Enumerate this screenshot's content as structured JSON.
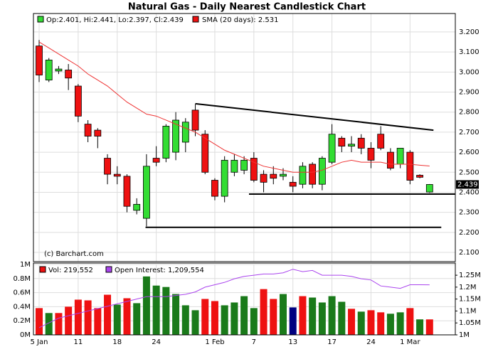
{
  "chart_data": [
    {
      "type": "candlestick",
      "title": "Natural Gas - Daily Nearest Candlestick Chart",
      "legend": [
        "Op:2.401, Hi:2.441, Lo:2.397, Cl:2.439",
        "SMA (20 days): 2.531"
      ],
      "credit": "(c) Barchart.com",
      "up_color": "#33dd33",
      "down_color": "#ee1111",
      "sma_color": "#ee3333",
      "open": [
        3.13,
        2.96,
        3.005,
        3.01,
        2.93,
        2.74,
        2.71,
        2.57,
        2.49,
        2.48,
        2.31,
        2.27,
        2.57,
        2.57,
        2.6,
        2.65,
        2.81,
        2.69,
        2.46,
        2.38,
        2.5,
        2.51,
        2.57,
        2.49,
        2.49,
        2.48,
        2.45,
        2.44,
        2.54,
        2.44,
        2.55,
        2.67,
        2.63,
        2.67,
        2.62,
        2.69,
        2.6,
        2.54,
        2.6,
        2.485,
        2.401
      ],
      "high": [
        3.16,
        3.07,
        3.03,
        3.04,
        2.94,
        2.76,
        2.72,
        2.59,
        2.53,
        2.49,
        2.37,
        2.59,
        2.63,
        2.74,
        2.8,
        2.77,
        2.84,
        2.71,
        2.47,
        2.58,
        2.59,
        2.58,
        2.6,
        2.51,
        2.53,
        2.52,
        2.48,
        2.55,
        2.55,
        2.58,
        2.74,
        2.68,
        2.68,
        2.69,
        2.65,
        2.73,
        2.62,
        2.62,
        2.61,
        2.49,
        2.441
      ],
      "low": [
        2.95,
        2.95,
        2.99,
        2.91,
        2.75,
        2.65,
        2.62,
        2.44,
        2.44,
        2.3,
        2.29,
        2.23,
        2.53,
        2.55,
        2.56,
        2.6,
        2.68,
        2.49,
        2.36,
        2.35,
        2.48,
        2.49,
        2.45,
        2.4,
        2.44,
        2.46,
        2.4,
        2.42,
        2.42,
        2.41,
        2.54,
        2.6,
        2.6,
        2.59,
        2.52,
        2.61,
        2.51,
        2.52,
        2.44,
        2.47,
        2.397
      ],
      "close": [
        2.985,
        3.06,
        3.015,
        2.97,
        2.78,
        2.68,
        2.68,
        2.49,
        2.48,
        2.33,
        2.34,
        2.53,
        2.55,
        2.73,
        2.76,
        2.75,
        2.71,
        2.5,
        2.38,
        2.56,
        2.56,
        2.56,
        2.46,
        2.45,
        2.47,
        2.49,
        2.43,
        2.53,
        2.44,
        2.57,
        2.69,
        2.63,
        2.64,
        2.62,
        2.56,
        2.62,
        2.52,
        2.62,
        2.46,
        2.475,
        2.439
      ],
      "sma": [
        3.15,
        3.12,
        3.09,
        3.06,
        3.03,
        2.99,
        2.96,
        2.93,
        2.89,
        2.85,
        2.82,
        2.79,
        2.78,
        2.76,
        2.74,
        2.72,
        2.7,
        2.67,
        2.64,
        2.61,
        2.59,
        2.57,
        2.55,
        2.53,
        2.52,
        2.51,
        2.5,
        2.5,
        2.5,
        2.51,
        2.53,
        2.55,
        2.56,
        2.55,
        2.55,
        2.55,
        2.54,
        2.54,
        2.54,
        2.535,
        2.531
      ],
      "trendlines": [
        {
          "x": [
            16,
            40.4
          ],
          "values": [
            2.842,
            2.71
          ]
        },
        {
          "x": [
            21.5,
            42.6
          ],
          "values": [
            2.391,
            2.391
          ]
        },
        {
          "x": [
            10.9,
            41.2
          ],
          "values": [
            2.225,
            2.225
          ]
        }
      ],
      "ylim": [
        2.054,
        3.292
      ],
      "yticks": [
        {
          "value": 2.1,
          "label": "2.100"
        },
        {
          "value": 2.2,
          "label": "2.200"
        },
        {
          "value": 2.3,
          "label": "2.300"
        },
        {
          "value": 2.4,
          "label": "2.400"
        },
        {
          "value": 2.5,
          "label": "2.500"
        },
        {
          "value": 2.6,
          "label": "2.600"
        },
        {
          "value": 2.7,
          "label": "2.700"
        },
        {
          "value": 2.8,
          "label": "2.800"
        },
        {
          "value": 2.9,
          "label": "2.900"
        },
        {
          "value": 3.0,
          "label": "3.000"
        },
        {
          "value": 3.1,
          "label": "3.100"
        },
        {
          "value": 3.2,
          "label": "3.200"
        }
      ],
      "grid": true
    },
    {
      "type": "bar",
      "legend": [
        "Vol: 219,552",
        "Open Interest: 1,209,554"
      ],
      "categories": [
        "5 Jan",
        null,
        null,
        null,
        "11",
        null,
        null,
        null,
        "18",
        null,
        null,
        null,
        "24",
        null,
        null,
        null,
        null,
        null,
        "1 Feb",
        null,
        null,
        null,
        "7",
        null,
        null,
        null,
        "13",
        null,
        null,
        null,
        "17",
        null,
        null,
        null,
        "24",
        null,
        null,
        null,
        "1 Mar",
        null,
        null
      ],
      "series": [
        {
          "name": "Vol",
          "colors": [
            "#ee1111",
            "#1a7a1a",
            "#ee1111",
            "#ee1111",
            "#ee1111",
            "#ee1111",
            "#ee1111",
            "#ee1111",
            "#1a7a1a",
            "#ee1111",
            "#1a7a1a",
            "#1a7a1a",
            "#1a7a1a",
            "#1a7a1a",
            "#1a7a1a",
            "#1a7a1a",
            "#1a7a1a",
            "#ee1111",
            "#ee1111",
            "#1a7a1a",
            "#1a7a1a",
            "#1a7a1a",
            "#1a7a1a",
            "#ee1111",
            "#ee1111",
            "#1a7a1a",
            "#000080",
            "#ee1111",
            "#1a7a1a",
            "#1a7a1a",
            "#1a7a1a",
            "#1a7a1a",
            "#ee1111",
            "#1a7a1a",
            "#ee1111",
            "#ee1111",
            "#1a7a1a",
            "#1a7a1a",
            "#ee1111",
            "#1a7a1a",
            "#ee1111"
          ],
          "values": [
            380000,
            310000,
            310000,
            400000,
            500000,
            490000,
            380000,
            570000,
            430000,
            520000,
            450000,
            830000,
            700000,
            680000,
            580000,
            420000,
            350000,
            510000,
            480000,
            420000,
            460000,
            550000,
            380000,
            650000,
            510000,
            580000,
            390000,
            550000,
            530000,
            460000,
            550000,
            470000,
            370000,
            330000,
            350000,
            320000,
            300000,
            320000,
            380000,
            220000,
            219552
          ]
        },
        {
          "name": "Open Interest",
          "color": "#aa44ee",
          "axis": "y2",
          "values": [
            1030000,
            1050000,
            1070000,
            1080000,
            1090000,
            1100000,
            1110000,
            1120000,
            1130000,
            1140000,
            1150000,
            1160000,
            1160000,
            1160000,
            1165000,
            1170000,
            1180000,
            1200000,
            1210000,
            1220000,
            1235000,
            1245000,
            1250000,
            1255000,
            1255000,
            1260000,
            1275000,
            1265000,
            1270000,
            1250000,
            1250000,
            1250000,
            1245000,
            1235000,
            1230000,
            1205000,
            1200000,
            1195000,
            1210000,
            1210000,
            1209554
          ]
        }
      ],
      "ylim": [
        0,
        1000000
      ],
      "yticks": [
        {
          "value": 0,
          "label": "0M"
        },
        {
          "value": 200000,
          "label": "0.2M"
        },
        {
          "value": 400000,
          "label": "0.4M"
        },
        {
          "value": 600000,
          "label": "0.6M"
        },
        {
          "value": 800000,
          "label": "0.8M"
        },
        {
          "value": 1000000,
          "label": "1M"
        }
      ],
      "y2lim": [
        1000000,
        1295000
      ],
      "y2ticks": [
        {
          "value": 1000000,
          "label": "1M"
        },
        {
          "value": 1050000,
          "label": "1.05M"
        },
        {
          "value": 1100000,
          "label": "1.1M"
        },
        {
          "value": 1150000,
          "label": "1.15M"
        },
        {
          "value": 1200000,
          "label": "1.2M"
        },
        {
          "value": 1250000,
          "label": "1.25M"
        }
      ],
      "grid": true
    }
  ]
}
